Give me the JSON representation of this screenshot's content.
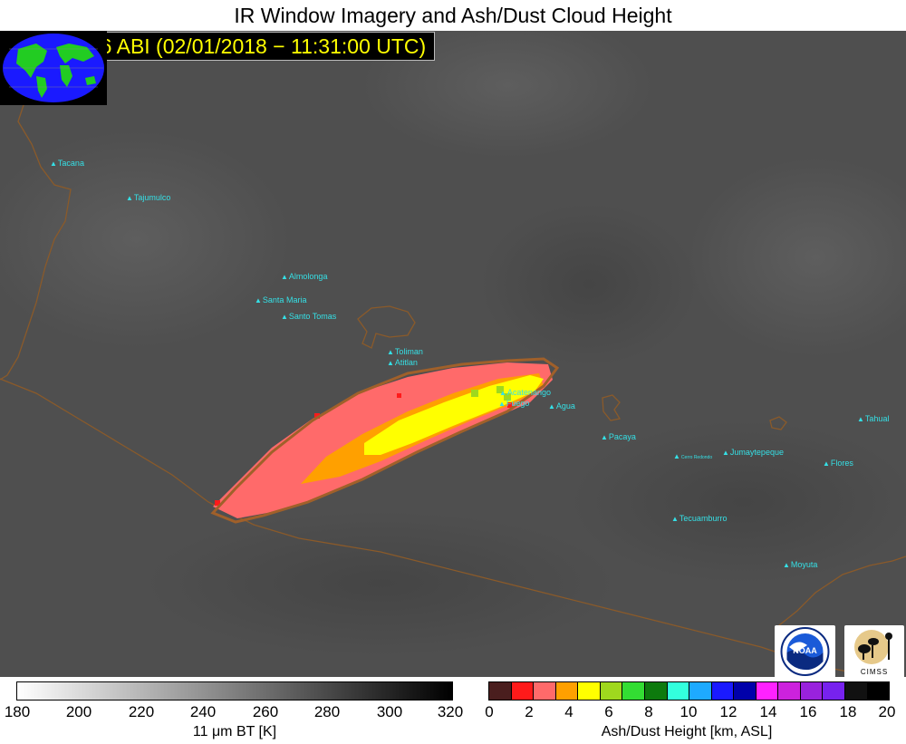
{
  "title": "IR Window Imagery and Ash/Dust Cloud Height",
  "subtitle": "GOES−16 ABI (02/01/2018 − 11:31:00 UTC)",
  "volcanoes": [
    {
      "name": "Tacana"
    },
    {
      "name": "Tajumulco"
    },
    {
      "name": "Almolonga"
    },
    {
      "name": "Santa Maria"
    },
    {
      "name": "Santo Tomas"
    },
    {
      "name": "Toliman"
    },
    {
      "name": "Atitlan"
    },
    {
      "name": "Acatenango"
    },
    {
      "name": "Fuego"
    },
    {
      "name": "Agua"
    },
    {
      "name": "Pacaya"
    },
    {
      "name": "Cerro Redondo"
    },
    {
      "name": "Jumaytepeque"
    },
    {
      "name": "Tecuamburro"
    },
    {
      "name": "Flores"
    },
    {
      "name": "Tahual"
    },
    {
      "name": "Moyuta"
    }
  ],
  "bt_colorbar": {
    "ticks": [
      "180",
      "200",
      "220",
      "240",
      "260",
      "280",
      "300",
      "320"
    ],
    "label": "11 μm BT [K]"
  },
  "ash_colorbar": {
    "ticks": [
      "0",
      "2",
      "4",
      "6",
      "8",
      "10",
      "12",
      "14",
      "16",
      "18",
      "20"
    ],
    "label": "Ash/Dust Height [km, ASL]",
    "colors": [
      "#4a1e1e",
      "#ff1a1a",
      "#ff6a6a",
      "#ffa000",
      "#ffff00",
      "#9fd81e",
      "#33dd33",
      "#0d7a0d",
      "#33ffdd",
      "#1eaaff",
      "#1a1aff",
      "#0000aa",
      "#ff22ff",
      "#cc22dd",
      "#9922dd",
      "#7722ee",
      "#111111",
      "#000000"
    ]
  },
  "logos": {
    "noaa": "NOAA",
    "cimss": "CIMSS"
  }
}
